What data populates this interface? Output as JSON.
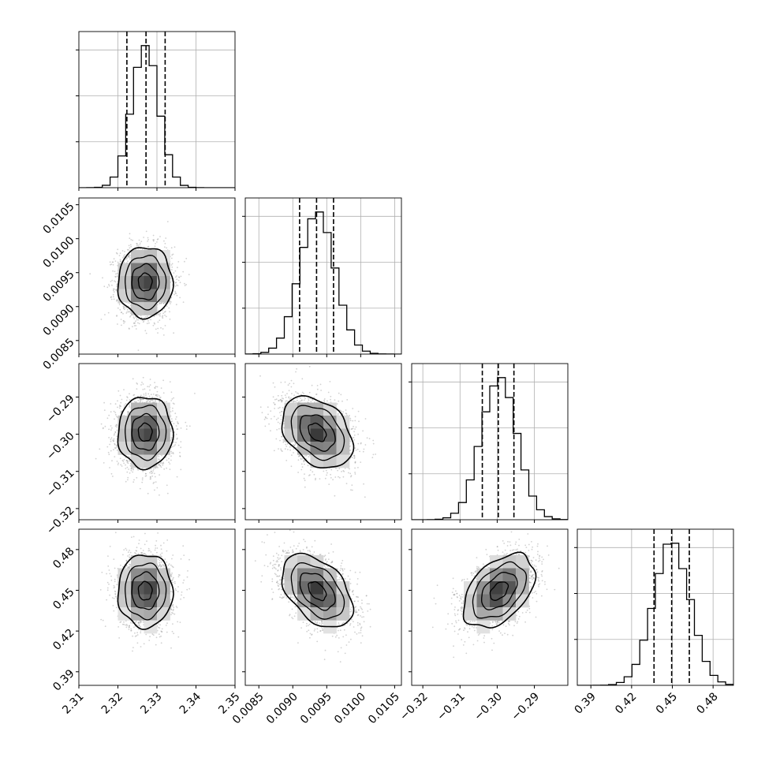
{
  "chart_data": {
    "type": "corner",
    "parameters": [
      {
        "range": [
          2.31,
          2.35
        ],
        "ticks": [
          2.31,
          2.32,
          2.33,
          2.34,
          2.35
        ],
        "tick_labels": [
          "2.31",
          "2.32",
          "2.33",
          "2.34",
          "2.35"
        ],
        "mean": 2.327,
        "sd": 0.0035,
        "quantiles": [
          2.3223,
          2.3272,
          2.3321
        ]
      },
      {
        "range": [
          0.0083,
          0.0106
        ],
        "ticks": [
          0.0085,
          0.009,
          0.0095,
          0.01,
          0.0105
        ],
        "tick_labels": [
          "0.0085",
          "0.0090",
          "0.0095",
          "0.0100",
          "0.0105"
        ],
        "mean": 0.00936,
        "sd": 0.00026,
        "quantiles": [
          0.0091,
          0.00935,
          0.0096
        ]
      },
      {
        "range": [
          -0.323,
          -0.281
        ],
        "ticks": [
          -0.32,
          -0.31,
          -0.3,
          -0.29
        ],
        "tick_labels": [
          "−0.32",
          "−0.31",
          "−0.30",
          "−0.29"
        ],
        "mean": -0.2995,
        "sd": 0.0048,
        "quantiles": [
          -0.304,
          -0.2997,
          -0.2955
        ]
      },
      {
        "range": [
          0.38,
          0.495
        ],
        "ticks": [
          0.39,
          0.42,
          0.45,
          0.48
        ],
        "tick_labels": [
          "0.39",
          "0.42",
          "0.45",
          "0.48"
        ],
        "mean": 0.4495,
        "sd": 0.0135,
        "quantiles": [
          0.4365,
          0.4495,
          0.4625
        ]
      }
    ],
    "correlations": {
      "1-0": 0.0,
      "2-0": 0.0,
      "2-1": -0.35,
      "3-0": 0.0,
      "3-1": -0.45,
      "3-2": 0.45
    },
    "histogram_bins": 20,
    "grid": true,
    "colors": {
      "line": "#000000",
      "grid": "#b0b0b0",
      "scatter": "#9a9a9a"
    }
  }
}
